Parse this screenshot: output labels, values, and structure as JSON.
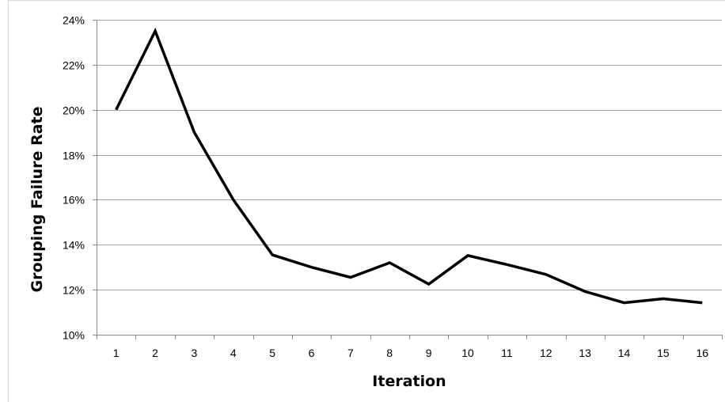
{
  "chart_data": {
    "type": "line",
    "title": "",
    "xlabel": "Iteration",
    "ylabel": "Grouping Failure Rate",
    "categories": [
      "1",
      "2",
      "3",
      "4",
      "5",
      "6",
      "7",
      "8",
      "9",
      "10",
      "11",
      "12",
      "13",
      "14",
      "15",
      "16"
    ],
    "series": [
      {
        "values": [
          0.2,
          0.235,
          0.19,
          0.16,
          0.1355,
          0.13,
          0.1255,
          0.132,
          0.1225,
          0.1352,
          0.1312,
          0.1268,
          0.1192,
          0.1142,
          0.116,
          0.1142
        ],
        "color": "#000000"
      }
    ],
    "y_ticks": [
      {
        "value": 0.1,
        "label": "10%"
      },
      {
        "value": 0.12,
        "label": "12%"
      },
      {
        "value": 0.14,
        "label": "14%"
      },
      {
        "value": 0.16,
        "label": "16%"
      },
      {
        "value": 0.18,
        "label": "18%"
      },
      {
        "value": 0.2,
        "label": "20%"
      },
      {
        "value": 0.22,
        "label": "22%"
      },
      {
        "value": 0.24,
        "label": "24%"
      }
    ],
    "ylim": [
      0.1,
      0.24
    ],
    "grid": "horizontal",
    "legend": "none"
  }
}
